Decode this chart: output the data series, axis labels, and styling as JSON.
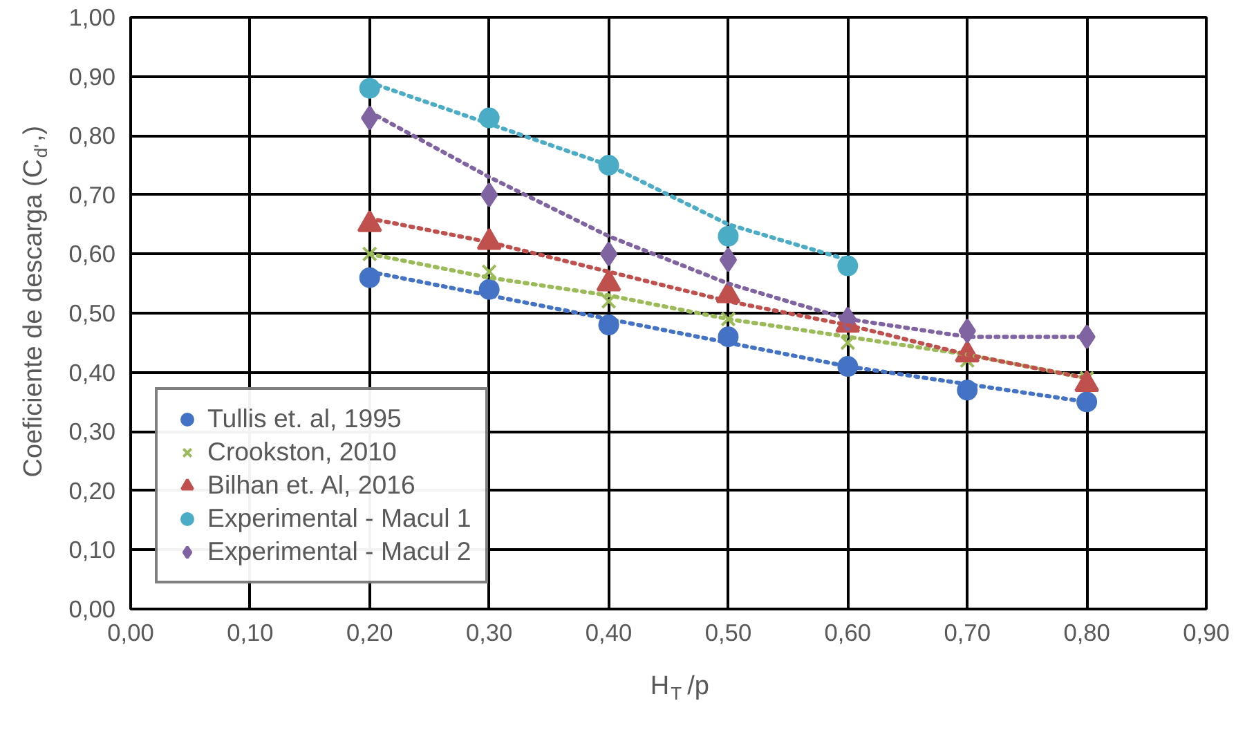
{
  "chart_data": {
    "type": "scatter",
    "xlabel": "H$_{T}$/p",
    "ylabel": "Coeficiente de descarga (C$_{d'}$,)",
    "xlim": [
      0,
      0.9
    ],
    "ylim": [
      0,
      1
    ],
    "xticks": [
      {
        "value": 0,
        "label": "0,00"
      },
      {
        "value": 0.1,
        "label": "0,10"
      },
      {
        "value": 0.2,
        "label": "0,20"
      },
      {
        "value": 0.3,
        "label": "0,30"
      },
      {
        "value": 0.4,
        "label": "0,40"
      },
      {
        "value": 0.5,
        "label": "0,50"
      },
      {
        "value": 0.6,
        "label": "0,60"
      },
      {
        "value": 0.7,
        "label": "0,70"
      },
      {
        "value": 0.8,
        "label": "0,80"
      },
      {
        "value": 0.9,
        "label": "0,90"
      }
    ],
    "yticks": [
      {
        "value": 0,
        "label": "0,00"
      },
      {
        "value": 0.1,
        "label": "0,10"
      },
      {
        "value": 0.2,
        "label": "0,20"
      },
      {
        "value": 0.3,
        "label": "0,30"
      },
      {
        "value": 0.4,
        "label": "0,40"
      },
      {
        "value": 0.5,
        "label": "0,50"
      },
      {
        "value": 0.6,
        "label": "0,60"
      },
      {
        "value": 0.7,
        "label": "0,70"
      },
      {
        "value": 0.8,
        "label": "0,80"
      },
      {
        "value": 0.9,
        "label": "0,90"
      },
      {
        "value": 1,
        "label": "1,00"
      }
    ],
    "grid": true,
    "legend": "bottom left",
    "series": [
      {
        "name": "Tullis et. al, 1995",
        "color": "#4472c4",
        "marker": "circle",
        "x": [
          0.2,
          0.3,
          0.4,
          0.5,
          0.6,
          0.7,
          0.8
        ],
        "values": [
          0.56,
          0.54,
          0.48,
          0.46,
          0.41,
          0.37,
          0.35
        ]
      },
      {
        "name": "Crookston, 2010",
        "color": "#9bbb59",
        "marker": "cross",
        "x": [
          0.2,
          0.3,
          0.4,
          0.5,
          0.6,
          0.7,
          0.8
        ],
        "values": [
          0.6,
          0.57,
          0.52,
          0.49,
          0.45,
          0.42,
          0.39
        ]
      },
      {
        "name": "Bilhan et. Al, 2016",
        "color": "#c0504d",
        "marker": "triangle",
        "x": [
          0.2,
          0.3,
          0.4,
          0.5,
          0.6,
          0.7,
          0.8
        ],
        "values": [
          0.65,
          0.62,
          0.55,
          0.53,
          0.48,
          0.43,
          0.38
        ]
      },
      {
        "name": "Experimental - Macul 1",
        "color": "#4bacc6",
        "marker": "circle",
        "x": [
          0.2,
          0.3,
          0.4,
          0.5,
          0.6
        ],
        "values": [
          0.88,
          0.83,
          0.75,
          0.63,
          0.58
        ]
      },
      {
        "name": "Experimental - Macul 2",
        "color": "#8064a2",
        "marker": "diamond",
        "x": [
          0.2,
          0.3,
          0.4,
          0.5,
          0.6,
          0.7,
          0.8
        ],
        "values": [
          0.83,
          0.7,
          0.6,
          0.59,
          0.49,
          0.47,
          0.46
        ]
      },
      {
        "type": "line",
        "color": "#4472c4",
        "line_style": "dotted",
        "marker": "none",
        "x": [
          0.2,
          0.3,
          0.4,
          0.5,
          0.6,
          0.7,
          0.8
        ],
        "values": [
          0.57,
          0.53,
          0.49,
          0.45,
          0.41,
          0.38,
          0.35
        ]
      },
      {
        "type": "line",
        "color": "#9bbb59",
        "line_style": "dotted",
        "marker": "none",
        "x": [
          0.2,
          0.3,
          0.4,
          0.5,
          0.6,
          0.7,
          0.8
        ],
        "values": [
          0.6,
          0.56,
          0.53,
          0.49,
          0.46,
          0.43,
          0.39
        ]
      },
      {
        "type": "line",
        "color": "#c0504d",
        "line_style": "dotted",
        "marker": "none",
        "x": [
          0.2,
          0.3,
          0.4,
          0.5,
          0.6,
          0.7,
          0.8
        ],
        "values": [
          0.66,
          0.62,
          0.57,
          0.52,
          0.48,
          0.43,
          0.39
        ]
      },
      {
        "type": "line",
        "color": "#4bacc6",
        "line_style": "dotted",
        "marker": "none",
        "x": [
          0.2,
          0.3,
          0.4,
          0.5,
          0.6
        ],
        "values": [
          0.89,
          0.82,
          0.75,
          0.65,
          0.59
        ]
      },
      {
        "type": "line",
        "color": "#8064a2",
        "line_style": "dotted",
        "marker": "none",
        "x": [
          0.2,
          0.3,
          0.4,
          0.5,
          0.6,
          0.7,
          0.8
        ],
        "values": [
          0.84,
          0.73,
          0.63,
          0.55,
          0.49,
          0.46,
          0.46
        ]
      }
    ]
  }
}
